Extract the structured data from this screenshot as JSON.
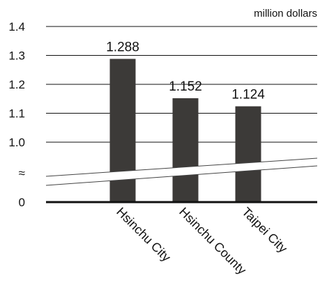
{
  "chart_data": {
    "type": "bar",
    "unit_label": "million dollars",
    "categories": [
      "Hsinchu City",
      "Hsinchu County",
      "Taipei City"
    ],
    "values": [
      1.288,
      1.152,
      1.124
    ],
    "data_labels": [
      "1.288",
      "1.152",
      "1.124"
    ],
    "y_ticks": [
      "1.4",
      "1.3",
      "1.2",
      "1.1",
      "1.0",
      "≈",
      "0"
    ],
    "y_tick_values": [
      1.4,
      1.3,
      1.2,
      1.1,
      1.0
    ],
    "ylim": [
      0.8,
      1.4
    ],
    "axis_break": true,
    "grid": true,
    "bar_color": "#3c3a38"
  }
}
